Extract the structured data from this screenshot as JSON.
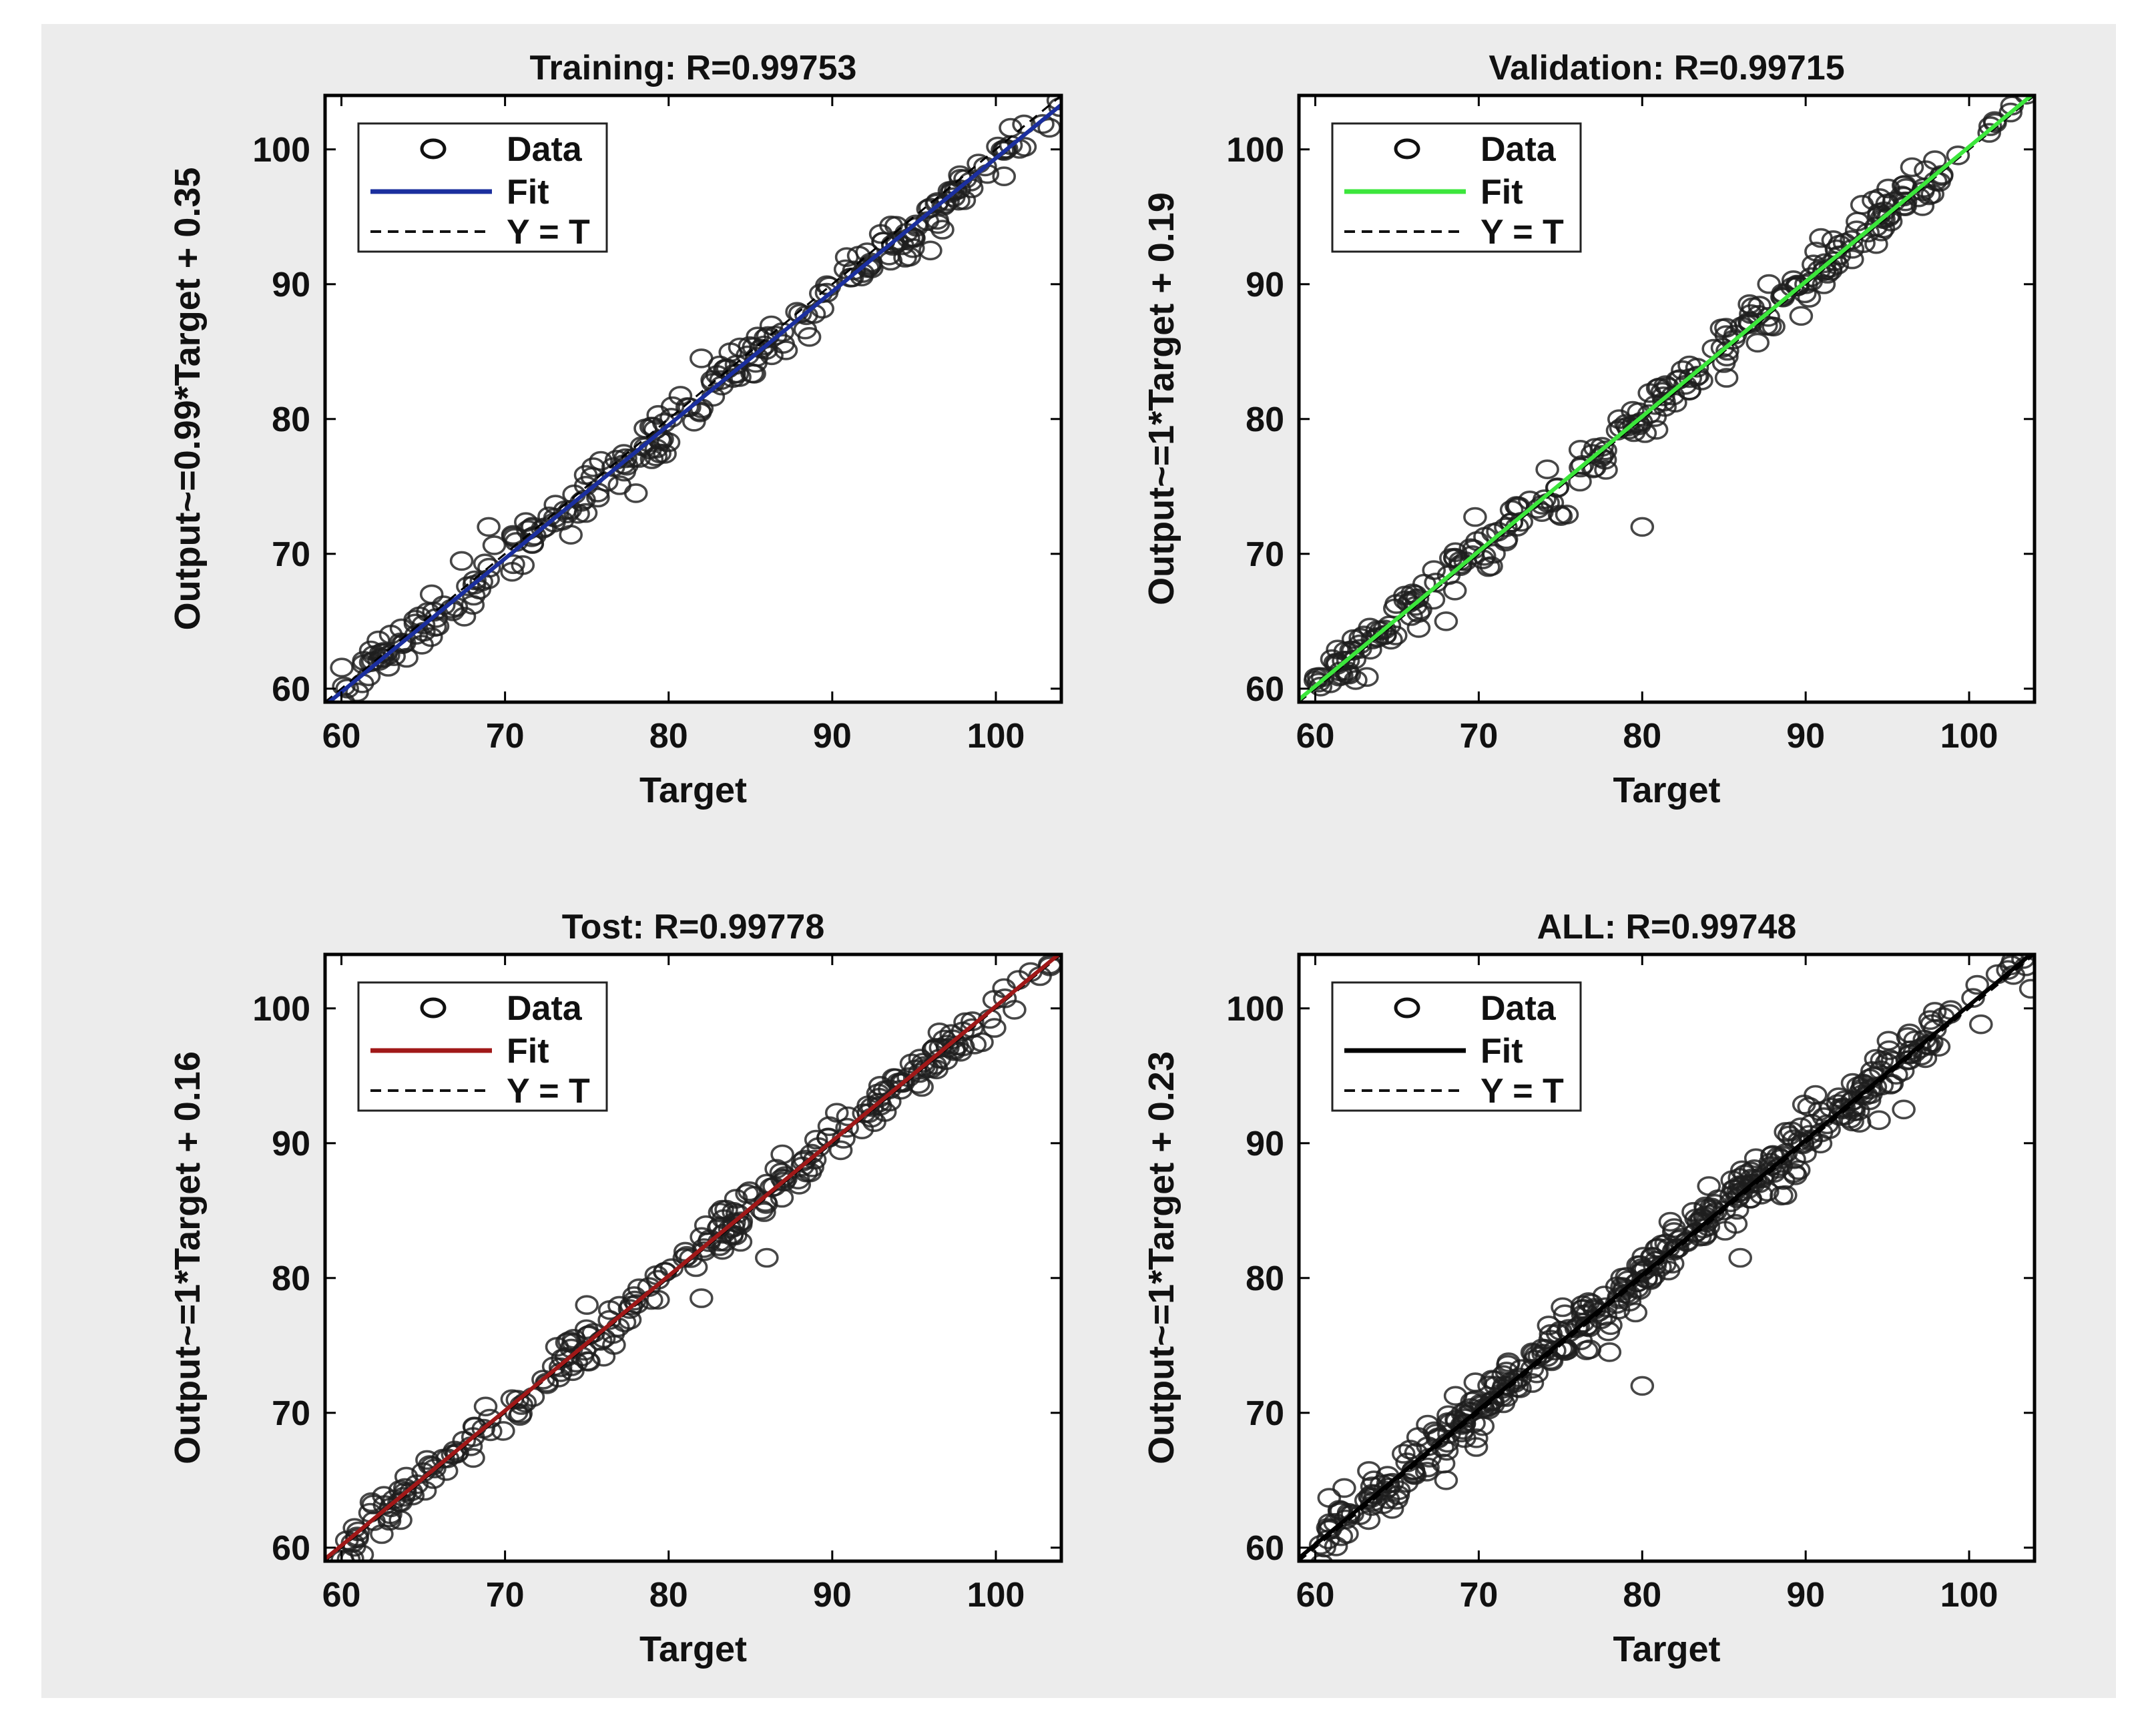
{
  "chart_data": [
    {
      "type": "scatter",
      "title": "Training: R=0.99753",
      "xlabel": "Target",
      "ylabel": "Output~=0.99*Target + 0.35",
      "xlim": [
        59,
        104
      ],
      "ylim": [
        59,
        104
      ],
      "xticks": [
        60,
        70,
        80,
        90,
        100
      ],
      "yticks": [
        60,
        70,
        80,
        90,
        100
      ],
      "fit_color": "#1b2f9e",
      "fit": {
        "slope": 0.99,
        "intercept": 0.35
      },
      "legend": [
        "Data",
        "Fit",
        "Y = T"
      ],
      "seed": 11,
      "n": 260,
      "noise": 0.9,
      "outliers": [
        [
          78,
          74.5
        ],
        [
          96,
          92.5
        ],
        [
          69,
          72
        ],
        [
          82,
          84.5
        ],
        [
          100.5,
          98
        ]
      ]
    },
    {
      "type": "scatter",
      "title": "Validation: R=0.99715",
      "xlabel": "Target",
      "ylabel": "Output~=1*Target + 0.19",
      "xlim": [
        59,
        104
      ],
      "ylim": [
        59,
        104
      ],
      "xticks": [
        60,
        70,
        80,
        90,
        100
      ],
      "yticks": [
        60,
        70,
        80,
        90,
        100
      ],
      "fit_color": "#3ce63c",
      "fit": {
        "slope": 1.0,
        "intercept": 0.19
      },
      "legend": [
        "Data",
        "Fit",
        "Y = T"
      ],
      "seed": 23,
      "n": 280,
      "noise": 0.9,
      "outliers": [
        [
          80,
          72
        ],
        [
          68,
          65
        ],
        [
          96,
          96.5
        ]
      ]
    },
    {
      "type": "scatter",
      "title": "Tost: R=0.99778",
      "xlabel": "Target",
      "ylabel": "Output~=1*Target + 0.16",
      "xlim": [
        59,
        104
      ],
      "ylim": [
        59,
        104
      ],
      "xticks": [
        60,
        70,
        80,
        90,
        100
      ],
      "yticks": [
        60,
        70,
        80,
        90,
        100
      ],
      "fit_color": "#a01818",
      "fit": {
        "slope": 1.0,
        "intercept": 0.16
      },
      "legend": [
        "Data",
        "Fit",
        "Y = T"
      ],
      "seed": 37,
      "n": 260,
      "noise": 0.85,
      "outliers": [
        [
          86,
          81.5
        ],
        [
          75,
          78
        ],
        [
          82,
          78.5
        ],
        [
          100.5,
          101.5
        ]
      ]
    },
    {
      "type": "scatter",
      "title": "ALL: R=0.99748",
      "xlabel": "Target",
      "ylabel": "Output~=1*Target + 0.23",
      "xlim": [
        59,
        104
      ],
      "ylim": [
        59,
        104
      ],
      "xticks": [
        60,
        70,
        80,
        90,
        100
      ],
      "yticks": [
        60,
        70,
        80,
        90,
        100
      ],
      "fit_color": "#000000",
      "fit": {
        "slope": 1.0,
        "intercept": 0.23
      },
      "legend": [
        "Data",
        "Fit",
        "Y = T"
      ],
      "seed": 53,
      "n": 420,
      "noise": 1.0,
      "outliers": [
        [
          80,
          72
        ],
        [
          86,
          81.5
        ],
        [
          78,
          74.5
        ],
        [
          96,
          92.5
        ],
        [
          68,
          65
        ]
      ]
    }
  ]
}
